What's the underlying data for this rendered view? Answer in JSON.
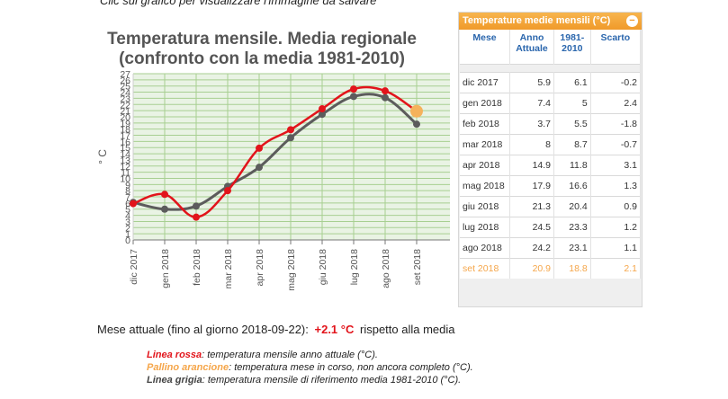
{
  "page": {
    "top_caption": "Clic sul grafico per visualizzare l'immagine da salvare",
    "current_month": {
      "label": "Mese attuale (fino al giorno 2018-09-22):",
      "value": "+2.1 °C",
      "suffix": "rispetto alla media"
    },
    "legend": [
      {
        "key": "Linea rossa",
        "text": ": temperatura mensile anno attuale (°C)."
      },
      {
        "key": "Pallino arancione",
        "text": ": temperatura mese in corso, non ancora completo (°C)."
      },
      {
        "key": "Linea grigia",
        "text": ": temperatura mensile di riferimento media 1981-2010 (°C)."
      }
    ]
  },
  "chart_data": {
    "type": "line",
    "title": [
      "Temperatura mensile. Media regionale",
      "(confronto con la media 1981-2010)"
    ],
    "ylabel": "° C",
    "xlabel": "",
    "ylim": [
      0,
      27
    ],
    "yticks": [
      "0",
      "1",
      "2",
      "3",
      "4",
      "5",
      "6",
      "7",
      "8",
      "9",
      "10",
      "11",
      "12",
      "13",
      "14",
      "15",
      "16",
      "17",
      "18",
      "19",
      "20",
      "21",
      "22",
      "23",
      "24",
      "25",
      "26",
      "27"
    ],
    "grid": true,
    "categories": [
      "dic 2017",
      "gen 2018",
      "feb 2018",
      "mar 2018",
      "apr 2018",
      "mag 2018",
      "giu 2018",
      "lug 2018",
      "ago 2018",
      "set 2018"
    ],
    "series": [
      {
        "name": "Linea rossa",
        "color": "#e2141b",
        "values": [
          5.9,
          7.4,
          3.7,
          8,
          14.9,
          17.9,
          21.3,
          24.5,
          24.2,
          null
        ]
      },
      {
        "name": "Linea grigia",
        "color": "#5c5c5c",
        "values": [
          6.1,
          5,
          5.5,
          8.7,
          11.8,
          16.6,
          20.4,
          23.3,
          23.1,
          18.8
        ]
      },
      {
        "name": "Pallino arancione",
        "color": "#f5b25c",
        "values": [
          null,
          null,
          null,
          null,
          null,
          null,
          null,
          null,
          null,
          20.9
        ]
      }
    ],
    "colors": {
      "plot_bg": "#e9f3e4",
      "grid": "#a7cf91",
      "axis": "#666666"
    }
  },
  "table": {
    "title": "Temperature medie mensili (°C)",
    "collapse_icon": "minus-circle-icon",
    "headers": [
      "Mese",
      "Anno Attuale",
      "1981-2010",
      "Scarto"
    ],
    "rows": [
      [
        "dic 2017",
        "5.9",
        "6.1",
        "-0.2"
      ],
      [
        "gen 2018",
        "7.4",
        "5",
        "2.4"
      ],
      [
        "feb 2018",
        "3.7",
        "5.5",
        "-1.8"
      ],
      [
        "mar 2018",
        "8",
        "8.7",
        "-0.7"
      ],
      [
        "apr 2018",
        "14.9",
        "11.8",
        "3.1"
      ],
      [
        "mag 2018",
        "17.9",
        "16.6",
        "1.3"
      ],
      [
        "giu 2018",
        "21.3",
        "20.4",
        "0.9"
      ],
      [
        "lug 2018",
        "24.5",
        "23.3",
        "1.2"
      ],
      [
        "ago 2018",
        "24.2",
        "23.1",
        "1.1"
      ],
      [
        "set 2018",
        "20.9",
        "18.8",
        "2.1"
      ]
    ]
  }
}
